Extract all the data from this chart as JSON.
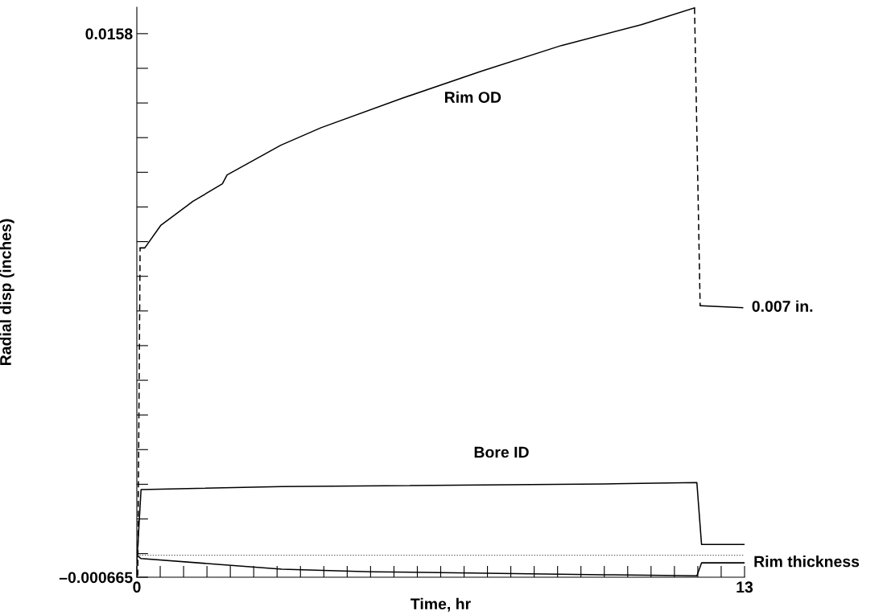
{
  "chart_data": {
    "type": "line",
    "xlabel": "Time, hr",
    "ylabel": "Radial disp (inches)",
    "xlim": [
      0,
      13
    ],
    "ylim": [
      -0.000665,
      0.0166
    ],
    "xticks": [
      0,
      {
        "value": 0.5,
        "label": null
      },
      {
        "value": 1,
        "label": null
      },
      {
        "value": 1.5,
        "label": null
      },
      {
        "value": 2,
        "label": null
      },
      {
        "value": 2.5,
        "label": null
      },
      {
        "value": 3,
        "label": null
      },
      {
        "value": 3.5,
        "label": null
      },
      {
        "value": 4,
        "label": null
      },
      {
        "value": 4.5,
        "label": null
      },
      {
        "value": 5,
        "label": null
      },
      {
        "value": 5.5,
        "label": null
      },
      {
        "value": 6,
        "label": null
      },
      {
        "value": 6.5,
        "label": null
      },
      {
        "value": 7,
        "label": null
      },
      {
        "value": 7.5,
        "label": null
      },
      {
        "value": 8,
        "label": null
      },
      {
        "value": 8.5,
        "label": null
      },
      {
        "value": 9,
        "label": null
      },
      {
        "value": 9.5,
        "label": null
      },
      {
        "value": 10,
        "label": null
      },
      {
        "value": 10.5,
        "label": null
      },
      {
        "value": 11,
        "label": null
      },
      {
        "value": 11.5,
        "label": null
      },
      {
        "value": 12,
        "label": null
      },
      {
        "value": 12.5,
        "label": null
      },
      13
    ],
    "yticks": [
      {
        "value": -0.000665,
        "label": "–0.000665"
      },
      {
        "value": 5e-05,
        "label": null
      },
      {
        "value": 0.0011,
        "label": null
      },
      {
        "value": 0.00215,
        "label": null
      },
      {
        "value": 0.0032,
        "label": null
      },
      {
        "value": 0.00425,
        "label": null
      },
      {
        "value": 0.0053,
        "label": null
      },
      {
        "value": 0.00635,
        "label": null
      },
      {
        "value": 0.0074,
        "label": null
      },
      {
        "value": 0.00845,
        "label": null
      },
      {
        "value": 0.0095,
        "label": null
      },
      {
        "value": 0.01055,
        "label": null
      },
      {
        "value": 0.0116,
        "label": null
      },
      {
        "value": 0.01265,
        "label": null
      },
      {
        "value": 0.0137,
        "label": null
      },
      {
        "value": 0.01475,
        "label": null
      },
      0.0158
    ],
    "grid": false,
    "legend": false,
    "marker": "none",
    "series": [
      {
        "color": "#000000",
        "line_style": "dashed",
        "x": [
          0.02,
          0.07
        ],
        "values": [
          -0.00062,
          0.00931
        ]
      },
      {
        "name": "Rim OD",
        "color": "#000000",
        "line_style": "solid",
        "x": [
          0.07,
          0.17,
          0.51,
          1.2,
          1.83,
          1.93,
          3.08,
          3.94,
          5.65,
          7.36,
          9.08,
          10.79,
          11.93
        ],
        "values": [
          0.00931,
          0.00931,
          0.00999,
          0.01072,
          0.01125,
          0.01152,
          0.01242,
          0.01295,
          0.01383,
          0.01466,
          0.01544,
          0.01607,
          0.01658
        ]
      },
      {
        "color": "#000000",
        "line_style": "dashed",
        "x": [
          11.93,
          12.05
        ],
        "values": [
          0.01658,
          0.00756
        ]
      },
      {
        "name": "0.007 in.",
        "color": "#000000",
        "line_style": "solid",
        "x": [
          12.05,
          12.96
        ],
        "values": [
          0.00756,
          0.0075
        ]
      },
      {
        "name": "Bore ID",
        "color": "#000000",
        "line_style": "solid",
        "x": [
          0,
          0.09,
          3.1,
          10.0,
          11.98,
          12.08,
          13.0
        ],
        "values": [
          -0.00023,
          0.00199,
          0.00208,
          0.00216,
          0.0022,
          0.00033,
          0.00033
        ]
      },
      {
        "name": "Rim thickness",
        "color": "#000000",
        "line_style": "solid",
        "x": [
          0,
          0.09,
          3.1,
          5.0,
          10.0,
          11.98,
          12.08,
          13.0
        ],
        "values": [
          0.0,
          -0.0001,
          -0.00042,
          -0.0005,
          -0.00059,
          -0.00062,
          -0.00023,
          -0.00023
        ]
      }
    ],
    "ref_lines": [
      {
        "axis": "y",
        "value": 0,
        "label": null,
        "color": "#555555",
        "line_style": "dotted"
      }
    ]
  }
}
